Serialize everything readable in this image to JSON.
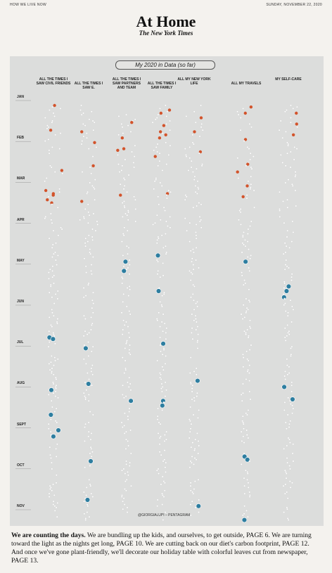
{
  "header": {
    "section": "HOW WE LIVE NOW",
    "date": "SUNDAY, NOVEMBER 22, 2020",
    "title": "At Home",
    "masthead": "The New York Times"
  },
  "chart": {
    "title": "My 2020 in Data (so far)",
    "columns": [
      "ALL THE TIMES I SAW CIVIL FRIENDS",
      "ALL THE TIMES I SAW E.",
      "ALL THE TIMES I SAW PARTNERS AND TEAM",
      "ALL THE TIMES I SAW FAMILY",
      "ALL MY NEW YORK LIFE",
      "ALL MY TRAVELS",
      "MY SELF-CARE"
    ],
    "months": [
      "JAN",
      "FEB",
      "MAR",
      "APR",
      "MAY",
      "JUN",
      "JUL",
      "AUG",
      "SEPT",
      "OCT",
      "NOV"
    ],
    "credit": "@GIORGIALUPI – PENTAGRAM"
  },
  "caption": {
    "lead": "We are counting the days.",
    "body": "We are bundling up the kids, and ourselves, to get outside, PAGE 6. We are turning toward the light as the nights get long, PAGE 10. We are cutting back on our diet's carbon footprint, PAGE 12. And once we've gone plant-friendly, we'll decorate our holiday table with colorful leaves cut from newspaper, PAGE 13."
  }
}
